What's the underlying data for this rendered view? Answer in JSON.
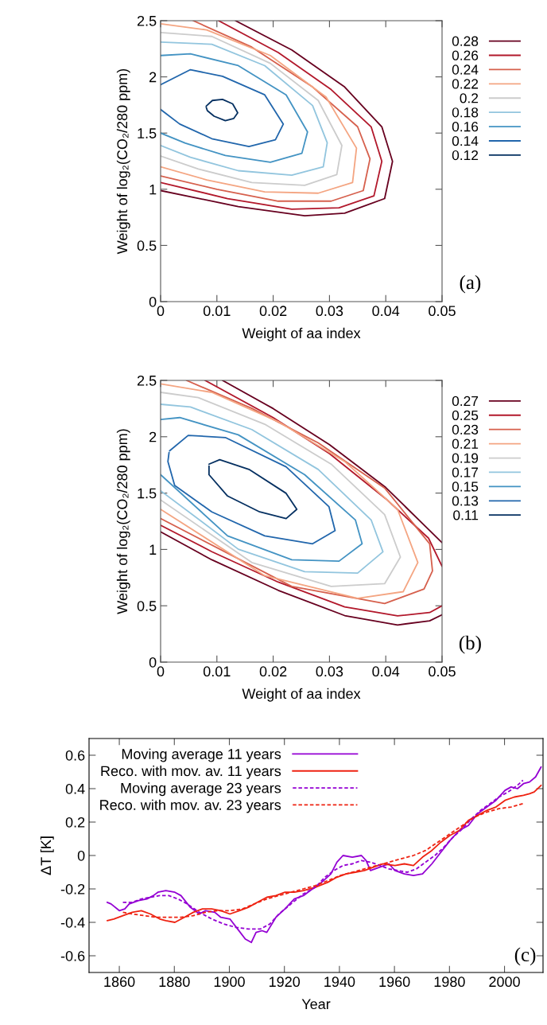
{
  "chart_data": [
    {
      "type": "line",
      "xlabel": "Weight of aa index",
      "ylabel": "Weight of log₂(CO₂/280 ppm)",
      "annotations": [
        "(a)"
      ],
      "legend": "right",
      "marker": "none",
      "xlim": [
        0,
        0.05
      ],
      "xticks": [
        0,
        0.01,
        0.02,
        0.03,
        0.04,
        0.05
      ],
      "ylim": [
        0,
        2.5
      ],
      "yticks": [
        0,
        0.5,
        1,
        1.5,
        2,
        2.5
      ],
      "series": [
        {
          "name": "0.28",
          "color": "#67001f",
          "x": [
            0.0133,
            0.0233,
            0.0327,
            0.0393,
            0.0412,
            0.0398,
            0.0327,
            0.0256,
            0.0138,
            0
          ],
          "values": [
            2.5,
            2.24,
            1.91,
            1.556,
            1.248,
            0.917,
            0.787,
            0.764,
            0.846,
            0.988
          ]
        },
        {
          "name": "0.26",
          "color": "#b2182b",
          "x": [
            0.0103,
            0.0209,
            0.0303,
            0.0374,
            0.0393,
            0.0379,
            0.0317,
            0.0233,
            0.0119,
            0
          ],
          "values": [
            2.5,
            2.217,
            1.887,
            1.556,
            1.248,
            0.941,
            0.835,
            0.823,
            0.917,
            1.06
          ]
        },
        {
          "name": "0.24",
          "color": "#d6604d",
          "x": [
            0.0058,
            0.0162,
            0.027,
            0.035,
            0.0372,
            0.036,
            0.0303,
            0.0209,
            0.01,
            0
          ],
          "values": [
            2.5,
            2.265,
            1.91,
            1.556,
            1.27,
            0.988,
            0.894,
            0.894,
            1.0,
            1.118
          ]
        },
        {
          "name": "0.22",
          "color": "#f4a582",
          "x": [
            0,
            0.0082,
            0.0195,
            0.0294,
            0.0348,
            0.0341,
            0.028,
            0.0185,
            0.0082,
            0
          ],
          "values": [
            2.473,
            2.418,
            2.19,
            1.82,
            1.366,
            1.06,
            0.965,
            0.976,
            1.083,
            1.2
          ]
        },
        {
          "name": "0.2",
          "color": "#cccccc",
          "x": [
            0,
            0.0091,
            0.0195,
            0.028,
            0.0322,
            0.0313,
            0.0256,
            0.0162,
            0.0067,
            0
          ],
          "values": [
            2.395,
            2.36,
            2.12,
            1.79,
            1.39,
            1.13,
            1.035,
            1.06,
            1.18,
            1.295
          ]
        },
        {
          "name": "0.18",
          "color": "#92c5de",
          "x": [
            0,
            0.0091,
            0.0185,
            0.027,
            0.0296,
            0.0289,
            0.0233,
            0.0138,
            0.0053,
            0
          ],
          "values": [
            2.31,
            2.29,
            2.1,
            1.745,
            1.414,
            1.2,
            1.125,
            1.165,
            1.284,
            1.39
          ]
        },
        {
          "name": "0.16",
          "color": "#4393c3",
          "x": [
            0,
            0.0053,
            0.0138,
            0.0223,
            0.0261,
            0.0251,
            0.0195,
            0.0115,
            0.0044,
            0
          ],
          "values": [
            2.19,
            2.205,
            2.1,
            1.84,
            1.51,
            1.32,
            1.24,
            1.3,
            1.41,
            1.5
          ]
        },
        {
          "name": "0.14",
          "color": "#2166ac",
          "x": [
            0,
            0.0053,
            0.011,
            0.0185,
            0.0218,
            0.0204,
            0.0157,
            0.0091,
            0.0034,
            0
          ],
          "values": [
            1.93,
            2.064,
            2.005,
            1.84,
            1.58,
            1.44,
            1.38,
            1.45,
            1.58,
            1.71
          ]
        },
        {
          "name": "0.12",
          "color": "#053061",
          "x": [
            0.0081,
            0.0092,
            0.011,
            0.0128,
            0.0137,
            0.013,
            0.0115,
            0.0095,
            0.0083,
            0.0081
          ],
          "values": [
            1.74,
            1.79,
            1.8,
            1.76,
            1.68,
            1.63,
            1.61,
            1.65,
            1.7,
            1.73
          ]
        }
      ]
    },
    {
      "type": "line",
      "xlabel": "Weight of aa index",
      "ylabel": "Weight of log₂(CO₂/280 ppm)",
      "annotations": [
        "(b)"
      ],
      "legend": "right",
      "marker": "none",
      "xlim": [
        0,
        0.05
      ],
      "xticks": [
        0,
        0.01,
        0.02,
        0.03,
        0.04,
        0.05
      ],
      "ylim": [
        0,
        2.5
      ],
      "yticks": [
        0,
        0.5,
        1,
        1.5,
        2,
        2.5
      ],
      "series": [
        {
          "name": "0.27",
          "color": "#67001f",
          "x": [
            0.011,
            0.02,
            0.03,
            0.04,
            0.05,
            null,
            0.05,
            0.0478,
            0.0421,
            0.0327,
            0.0209,
            0.0091,
            0
          ],
          "values": [
            2.5,
            2.25,
            1.93,
            1.55,
            1.06,
            null,
            0.42,
            0.366,
            0.33,
            0.413,
            0.637,
            0.908,
            1.156
          ]
        },
        {
          "name": "0.25",
          "color": "#b2182b",
          "x": [
            0.0079,
            0.02,
            0.03,
            0.04,
            0.0476,
            0.05,
            null,
            0.05,
            0.0478,
            0.0421,
            0.0327,
            0.0209,
            0.0091,
            0
          ],
          "values": [
            2.5,
            2.17,
            1.85,
            1.45,
            1.1,
            0.85,
            null,
            0.5,
            0.44,
            0.41,
            0.49,
            0.71,
            0.98,
            1.215
          ]
        },
        {
          "name": "0.23",
          "color": "#d6604d",
          "x": [
            0.0046,
            0.0162,
            0.028,
            0.0398,
            0.0478,
            0.0483,
            0.0468,
            0.0398,
            0.0233,
            0
          ],
          "values": [
            2.5,
            2.252,
            1.946,
            1.545,
            1.05,
            0.81,
            0.649,
            0.52,
            0.672,
            1.274
          ]
        },
        {
          "name": "0.21",
          "color": "#f4a582",
          "x": [
            0,
            0.0091,
            0.0209,
            0.0327,
            0.0421,
            0.0457,
            0.0431,
            0.035,
            0.0185,
            0
          ],
          "values": [
            2.469,
            2.394,
            2.134,
            1.78,
            1.356,
            0.884,
            0.625,
            0.566,
            0.767,
            1.356
          ]
        },
        {
          "name": "0.19",
          "color": "#cccccc",
          "x": [
            0,
            0.0067,
            0.0185,
            0.0303,
            0.0398,
            0.0426,
            0.0398,
            0.0303,
            0.0162,
            0
          ],
          "values": [
            2.394,
            2.347,
            2.111,
            1.757,
            1.309,
            0.932,
            0.696,
            0.672,
            0.884,
            1.439
          ]
        },
        {
          "name": "0.17",
          "color": "#92c5de",
          "x": [
            0,
            0.0053,
            0.0162,
            0.028,
            0.0374,
            0.0395,
            0.035,
            0.0256,
            0.0138,
            0
          ],
          "values": [
            2.288,
            2.264,
            2.064,
            1.71,
            1.262,
            0.979,
            0.79,
            0.802,
            1.002,
            1.521
          ]
        },
        {
          "name": "0.15",
          "color": "#4393c3",
          "x": [
            0,
            0.0034,
            0.0138,
            0.0256,
            0.0346,
            0.0358,
            0.0317,
            0.0233,
            0.0119,
            0
          ],
          "values": [
            2.153,
            2.17,
            2.017,
            1.663,
            1.262,
            1.05,
            0.896,
            0.908,
            1.12,
            1.663
          ]
        },
        {
          "name": "0.13",
          "color": "#2166ac",
          "x": [
            0.0016,
            0.0049,
            0.0115,
            0.0223,
            0.0299,
            0.031,
            0.027,
            0.0185,
            0.0091,
            0.0025,
            0.0013,
            0.0015
          ],
          "values": [
            1.875,
            2.012,
            1.993,
            1.733,
            1.38,
            1.167,
            1.05,
            1.12,
            1.333,
            1.568,
            1.78,
            1.86
          ]
        },
        {
          "name": "0.11",
          "color": "#053061",
          "x": [
            0.0086,
            0.0105,
            0.0157,
            0.0223,
            0.0242,
            0.0223,
            0.0176,
            0.0119,
            0.0086,
            0.0086
          ],
          "values": [
            1.757,
            1.797,
            1.71,
            1.498,
            1.356,
            1.274,
            1.333,
            1.474,
            1.663,
            1.74
          ]
        }
      ]
    },
    {
      "type": "line",
      "xlabel": "Year",
      "ylabel": "ΔT [K]",
      "annotations": [
        "(c)"
      ],
      "legend": "top left",
      "marker": "none",
      "xlim": [
        1849,
        2014
      ],
      "xticks": [
        1860,
        1880,
        1900,
        1920,
        1940,
        1960,
        1980,
        2000
      ],
      "ylim": [
        -0.7,
        0.7
      ],
      "yticks": [
        -0.6,
        -0.4,
        -0.2,
        0,
        0.2,
        0.4,
        0.6
      ],
      "series": [
        {
          "name": "Moving average 11 years",
          "color": "#9400d3",
          "line_style": "solid",
          "x": [
            1855.6,
            1857,
            1860,
            1862,
            1863.6,
            1867,
            1870,
            1872.4,
            1874,
            1876.9,
            1880.2,
            1882.4,
            1885.8,
            1889.1,
            1891.3,
            1894.7,
            1896.9,
            1900.2,
            1903,
            1905.8,
            1908,
            1909.7,
            1911.9,
            1913.6,
            1916.9,
            1920.2,
            1923.6,
            1926.9,
            1930.2,
            1933.6,
            1936.9,
            1939.1,
            1941.3,
            1944.7,
            1948,
            1949.7,
            1951.3,
            1954.7,
            1958,
            1960.2,
            1963.6,
            1966.9,
            1970.2,
            1973.6,
            1976.9,
            1980.2,
            1983.6,
            1986.9,
            1990.2,
            1993.6,
            1996.9,
            2000.2,
            2002.4,
            2004.7,
            2006.9,
            2009.1,
            2011.3,
            2013.3
          ],
          "values": [
            -0.28,
            -0.29,
            -0.33,
            -0.32,
            -0.29,
            -0.27,
            -0.26,
            -0.24,
            -0.22,
            -0.21,
            -0.22,
            -0.24,
            -0.31,
            -0.35,
            -0.33,
            -0.34,
            -0.37,
            -0.38,
            -0.44,
            -0.5,
            -0.52,
            -0.46,
            -0.45,
            -0.46,
            -0.37,
            -0.32,
            -0.26,
            -0.24,
            -0.2,
            -0.16,
            -0.11,
            -0.04,
            0,
            -0.01,
            0,
            -0.03,
            -0.09,
            -0.07,
            -0.05,
            -0.09,
            -0.11,
            -0.12,
            -0.11,
            -0.05,
            0.02,
            0.09,
            0.15,
            0.18,
            0.25,
            0.29,
            0.33,
            0.39,
            0.41,
            0.4,
            0.43,
            0.44,
            0.47,
            0.53
          ]
        },
        {
          "name": "Reco. with mov. av. 11 years",
          "color": "#ee2211",
          "line_style": "solid",
          "x": [
            1855.6,
            1858,
            1861.3,
            1864.7,
            1868,
            1871.3,
            1874.7,
            1876.9,
            1880.2,
            1883.6,
            1886.9,
            1890.2,
            1893.6,
            1896.9,
            1900.2,
            1903.6,
            1906.9,
            1910.2,
            1913.6,
            1916.9,
            1920.2,
            1923.6,
            1926.9,
            1931.3,
            1935.8,
            1939.1,
            1942.4,
            1945.8,
            1949.1,
            1952.4,
            1955.8,
            1960.2,
            1963.6,
            1966.9,
            1970.2,
            1973.6,
            1976.9,
            1980.2,
            1983.6,
            1986.9,
            1990.2,
            1993.6,
            1996.9,
            2000.2,
            2003.6,
            2006.9,
            2009.1,
            2010.8,
            2013.3
          ],
          "values": [
            -0.39,
            -0.38,
            -0.36,
            -0.34,
            -0.33,
            -0.35,
            -0.38,
            -0.39,
            -0.4,
            -0.37,
            -0.34,
            -0.32,
            -0.32,
            -0.33,
            -0.35,
            -0.33,
            -0.31,
            -0.28,
            -0.25,
            -0.24,
            -0.22,
            -0.22,
            -0.21,
            -0.19,
            -0.16,
            -0.13,
            -0.11,
            -0.1,
            -0.09,
            -0.07,
            -0.05,
            -0.06,
            -0.05,
            -0.06,
            -0.01,
            0.03,
            0.08,
            0.12,
            0.15,
            0.21,
            0.24,
            0.27,
            0.29,
            0.33,
            0.35,
            0.36,
            0.37,
            0.38,
            0.42
          ]
        },
        {
          "name": "Moving average 23 years",
          "color": "#9400d3",
          "line_style": "dashed",
          "x": [
            1861.3,
            1864.7,
            1868,
            1871.3,
            1874.7,
            1878,
            1881.3,
            1884.7,
            1889.1,
            1893.6,
            1898,
            1902.4,
            1906.9,
            1911.3,
            1914.7,
            1918,
            1922.4,
            1926.9,
            1931.3,
            1934.7,
            1938,
            1941.3,
            1944.7,
            1948,
            1951.3,
            1954.7,
            1958,
            1961.3,
            1964.7,
            1968,
            1971.3,
            1974.7,
            1978,
            1981.3,
            1984.7,
            1988,
            1991.3,
            1994.7,
            1998,
            2001.3,
            2004.7,
            2006.7
          ],
          "values": [
            -0.28,
            -0.28,
            -0.26,
            -0.25,
            -0.24,
            -0.24,
            -0.26,
            -0.29,
            -0.34,
            -0.38,
            -0.41,
            -0.43,
            -0.44,
            -0.44,
            -0.41,
            -0.35,
            -0.29,
            -0.23,
            -0.19,
            -0.13,
            -0.09,
            -0.06,
            -0.05,
            -0.03,
            -0.04,
            -0.06,
            -0.08,
            -0.09,
            -0.1,
            -0.08,
            -0.04,
            0,
            0.05,
            0.11,
            0.16,
            0.22,
            0.27,
            0.31,
            0.35,
            0.38,
            0.42,
            0.45
          ]
        },
        {
          "name": "Reco. with mov. av. 23 years",
          "color": "#ee2211",
          "line_style": "dashed",
          "x": [
            1861.3,
            1864.7,
            1869.1,
            1873.6,
            1878,
            1882.4,
            1886.9,
            1891.3,
            1895.8,
            1900.2,
            1904.7,
            1909.1,
            1913.6,
            1918,
            1922.4,
            1926.9,
            1931.3,
            1935.8,
            1940.2,
            1944.7,
            1949.1,
            1953.6,
            1958,
            1962.4,
            1966.9,
            1971.3,
            1975.8,
            1980.2,
            1984.7,
            1989.1,
            1993.6,
            1998,
            2002.4,
            2006.7
          ],
          "values": [
            -0.34,
            -0.35,
            -0.36,
            -0.37,
            -0.37,
            -0.37,
            -0.36,
            -0.34,
            -0.33,
            -0.33,
            -0.32,
            -0.29,
            -0.26,
            -0.24,
            -0.22,
            -0.2,
            -0.18,
            -0.15,
            -0.12,
            -0.1,
            -0.08,
            -0.06,
            -0.04,
            -0.02,
            0,
            0.03,
            0.08,
            0.13,
            0.18,
            0.23,
            0.26,
            0.28,
            0.29,
            0.31
          ]
        }
      ]
    }
  ]
}
